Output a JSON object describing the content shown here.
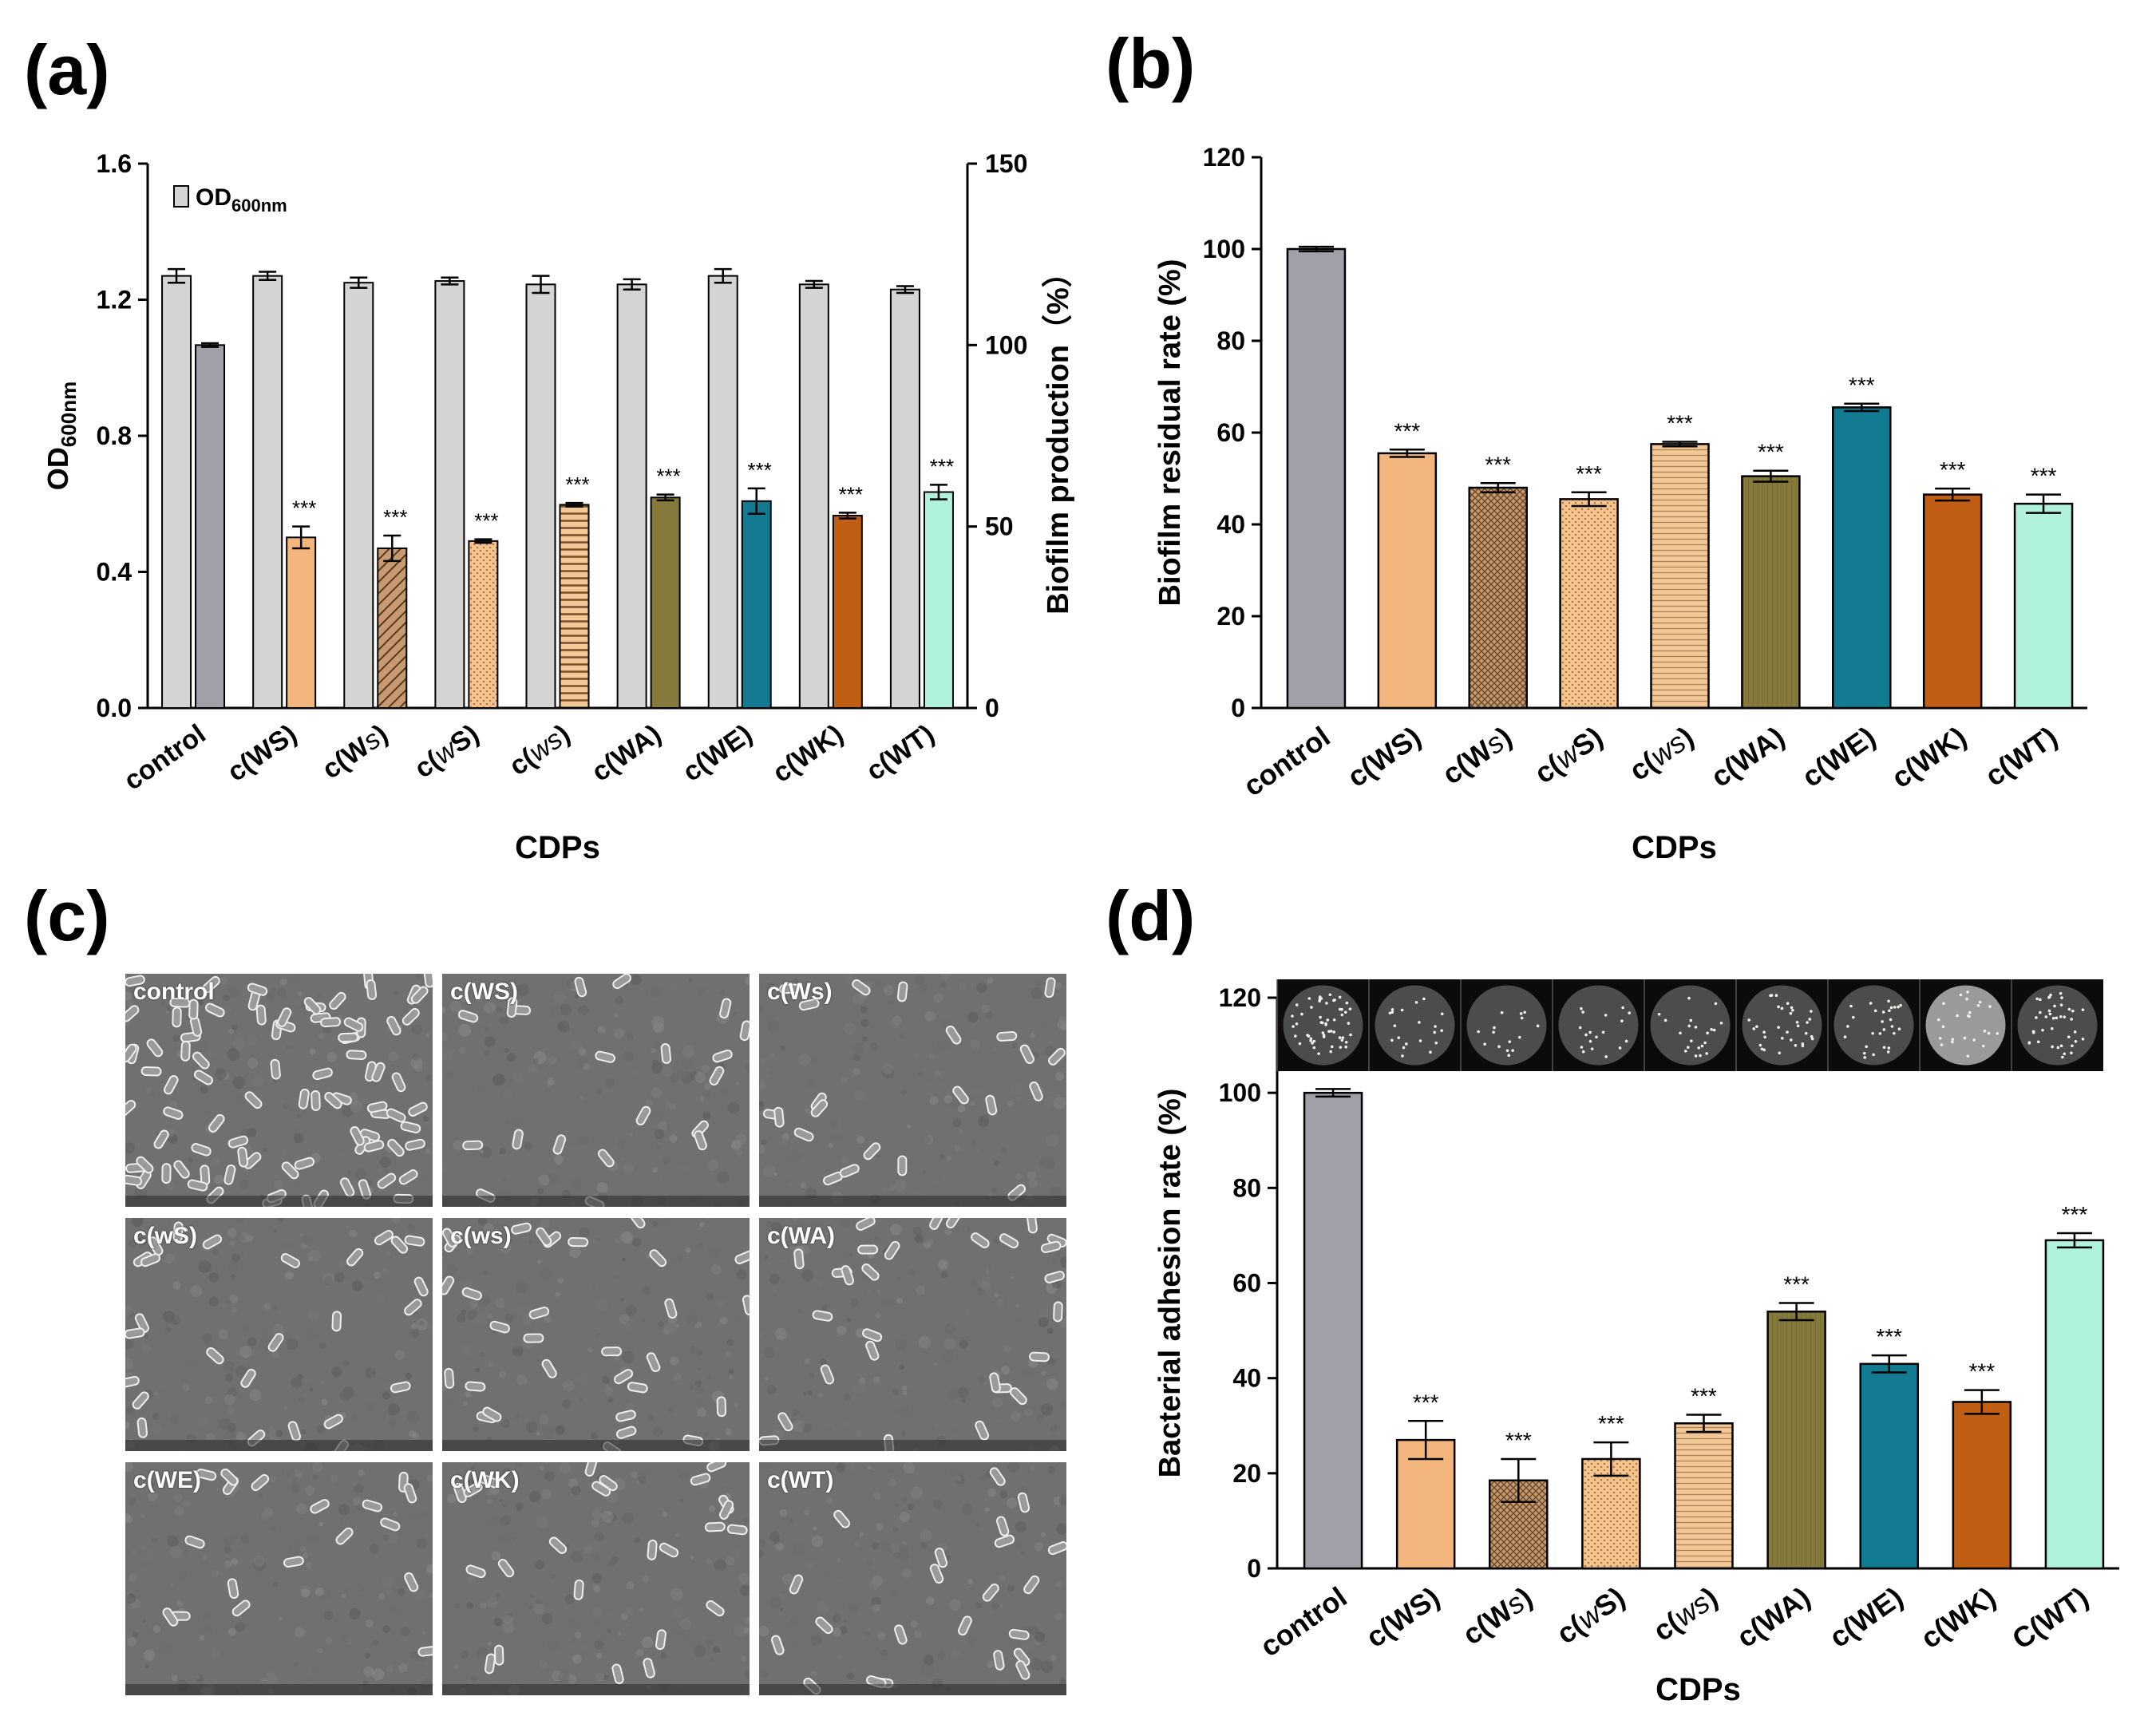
{
  "panel_labels": {
    "a": "(a)",
    "b": "(b)",
    "c": "(c)",
    "d": "(d)"
  },
  "colors": {
    "control_gray": "#9fa0a8",
    "od_bar": "#d4d4d4",
    "c_WS": "#f3b77d",
    "c_Ws": "#c89a72",
    "c_wS": "#f5c590",
    "c_ws": "#f1c896",
    "c_WA": "#857a3c",
    "c_WE": "#127b92",
    "c_WK": "#c05e13",
    "c_WT": "#b1f2dc"
  },
  "chart_data": [
    {
      "id": "a",
      "type": "bar",
      "categories": [
        "control",
        "c(WS)",
        "c(Ws)",
        "c(wS)",
        "c(ws)",
        "c(WA)",
        "c(WE)",
        "c(WK)",
        "c(WT)"
      ],
      "category_italic_letter": [
        null,
        null,
        "s",
        "w",
        "ws",
        null,
        null,
        null,
        null
      ],
      "series": [
        {
          "name": "OD600nm",
          "axis": "left",
          "values": [
            1.27,
            1.27,
            1.25,
            1.255,
            1.245,
            1.245,
            1.27,
            1.245,
            1.23
          ],
          "errors": [
            0.02,
            0.012,
            0.015,
            0.01,
            0.025,
            0.015,
            0.02,
            0.01,
            0.01
          ]
        },
        {
          "name": "Biofilm production",
          "axis": "right",
          "values": [
            100,
            47,
            44,
            46,
            56,
            58,
            57,
            53,
            59.5
          ],
          "errors": [
            0.5,
            3,
            3.5,
            0.5,
            0.5,
            0.8,
            3.5,
            0.8,
            2
          ]
        }
      ],
      "significance": [
        "",
        "***",
        "***",
        "***",
        "***",
        "***",
        "***",
        "***",
        "***"
      ],
      "xlabel": "CDPs",
      "ylabel_left": "OD",
      "ylabel_left_sub": "600nm",
      "ylabel_right": "Biofilm production（%）",
      "ylim_left": [
        0,
        1.6
      ],
      "yticks_left": [
        "0.0",
        "0.4",
        "0.8",
        "1.2",
        "1.6"
      ],
      "ylim_right": [
        0,
        150
      ],
      "yticks_right": [
        "0",
        "50",
        "100",
        "150"
      ],
      "legend": {
        "label": "OD",
        "label_sub": "600nm",
        "position": "top-left"
      }
    },
    {
      "id": "b",
      "type": "bar",
      "categories": [
        "control",
        "c(WS)",
        "c(Ws)",
        "c(wS)",
        "c(ws)",
        "c(WA)",
        "c(WE)",
        "c(WK)",
        "c(WT)"
      ],
      "category_italic_letter": [
        null,
        null,
        "s",
        "w",
        "ws",
        null,
        null,
        null,
        null
      ],
      "values": [
        100,
        55.5,
        48,
        45.5,
        57.5,
        50.5,
        65.5,
        46.5,
        44.5
      ],
      "errors": [
        0.5,
        0.8,
        1,
        1.5,
        0.5,
        1.2,
        0.8,
        1.3,
        2
      ],
      "significance": [
        "",
        "***",
        "***",
        "***",
        "***",
        "***",
        "***",
        "***",
        "***"
      ],
      "xlabel": "CDPs",
      "ylabel": "Biofilm residual rate (%)",
      "ylim": [
        0,
        120
      ],
      "yticks": [
        "0",
        "20",
        "40",
        "60",
        "80",
        "100",
        "120"
      ]
    },
    {
      "id": "d",
      "type": "bar",
      "categories": [
        "control",
        "c(WS)",
        "c(Ws)",
        "c(wS)",
        "c(ws)",
        "c(WA)",
        "c(WE)",
        "c(WK)",
        "C(WT)"
      ],
      "category_italic_letter": [
        null,
        null,
        "s",
        "w",
        "ws",
        null,
        null,
        null,
        null
      ],
      "values": [
        100,
        27,
        18.5,
        23,
        30.5,
        54,
        43,
        35,
        69
      ],
      "errors": [
        0.8,
        4,
        4.5,
        3.5,
        1.8,
        1.8,
        1.8,
        2.5,
        1.5
      ],
      "significance": [
        "",
        "***",
        "***",
        "***",
        "***",
        "***",
        "***",
        "***",
        "***"
      ],
      "xlabel": "CDPs",
      "ylabel": "Bacterial adhesion rate (%)",
      "ylim": [
        0,
        120
      ],
      "yticks": [
        "0",
        "20",
        "40",
        "60",
        "80",
        "100",
        "120"
      ],
      "plate_images": 9
    }
  ],
  "sem_panel": {
    "tiles": [
      {
        "label": "control",
        "density": 90
      },
      {
        "label": "c(WS)",
        "density": 20
      },
      {
        "label": "c(Ws)",
        "density": 22
      },
      {
        "label": "c(wS)",
        "density": 26
      },
      {
        "label": "c(ws)",
        "density": 30
      },
      {
        "label": "c(WA)",
        "density": 28
      },
      {
        "label": "c(WE)",
        "density": 18
      },
      {
        "label": "c(WK)",
        "density": 24
      },
      {
        "label": "c(WT)",
        "density": 22
      }
    ]
  }
}
